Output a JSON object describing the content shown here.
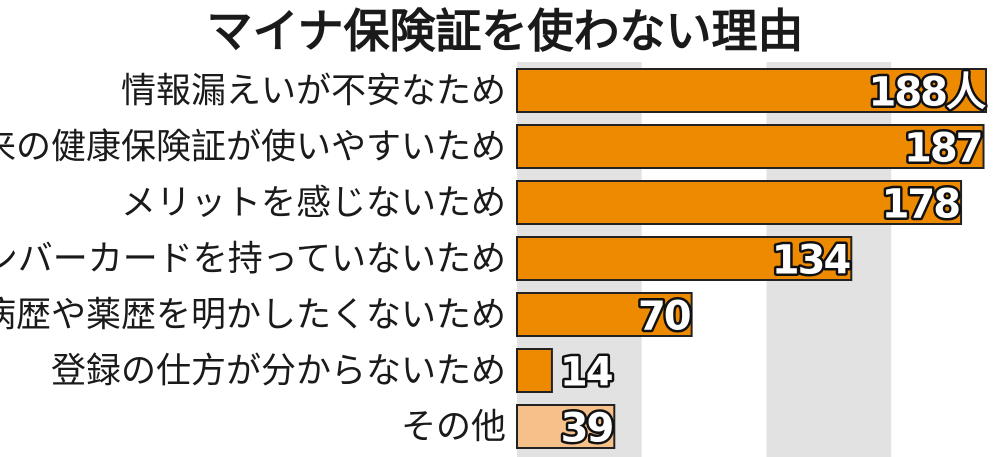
{
  "chart_data": {
    "type": "bar",
    "orientation": "horizontal",
    "title": "マイナ保険証を使わない理由",
    "categories": [
      "情報漏えいが不安なため",
      "従来の健康保険証が使いやすいため",
      "メリットを感じないため",
      "マイナンバーカードを持っていないため",
      "病歴や薬歴を明かしたくないため",
      "登録の仕方が分からないため",
      "その他"
    ],
    "values": [
      188,
      187,
      178,
      134,
      70,
      14,
      39
    ],
    "value_labels": [
      "188人",
      "187",
      "178",
      "134",
      "70",
      "14",
      "39"
    ],
    "unit": "人",
    "xlim": [
      0,
      190
    ],
    "grid": "alternating vertical bands",
    "colors": {
      "bar": "#ee8a00",
      "bar_other": "#f6c08a",
      "bar_outline": "#222222",
      "band": "#e2e2e2",
      "label_fill": "#ffffff"
    }
  }
}
